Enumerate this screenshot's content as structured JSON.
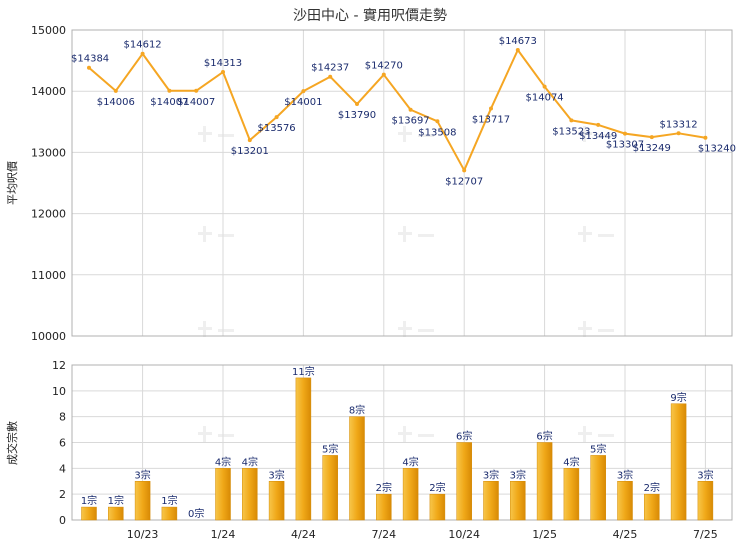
{
  "chart_data": [
    {
      "type": "line",
      "title": "沙田中心 - 實用呎價走勢",
      "ylabel": "平均呎價",
      "ylim": [
        10000,
        15000
      ],
      "yticks": [
        10000,
        11000,
        12000,
        13000,
        14000,
        15000
      ],
      "label_prefix": "$",
      "color": "#f5a623",
      "values": [
        14384,
        14006,
        14612,
        14007,
        14007,
        14313,
        13201,
        13576,
        14001,
        14237,
        13790,
        14270,
        13697,
        13508,
        12707,
        13717,
        14673,
        14074,
        13523,
        13449,
        13307,
        13249,
        13312,
        13240
      ]
    },
    {
      "type": "bar",
      "ylabel": "成交宗數",
      "ylim": [
        0,
        12
      ],
      "yticks": [
        0,
        2,
        4,
        6,
        8,
        10,
        12
      ],
      "label_suffix": "宗",
      "color": "#f0a818",
      "values": [
        1,
        1,
        3,
        1,
        0,
        4,
        4,
        3,
        11,
        5,
        8,
        2,
        4,
        2,
        6,
        3,
        3,
        6,
        4,
        5,
        3,
        2,
        9,
        3
      ],
      "x_tick_labels": [
        "10/23",
        "1/24",
        "4/24",
        "7/24",
        "10/24",
        "1/25",
        "4/25",
        "7/25"
      ]
    }
  ]
}
